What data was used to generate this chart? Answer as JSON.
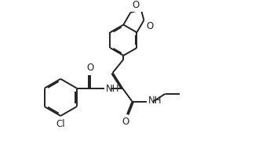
{
  "bg_color": "#ffffff",
  "line_color": "#222222",
  "line_width": 1.4,
  "font_size": 8.5,
  "figsize": [
    3.48,
    2.12
  ],
  "dpi": 100,
  "xlim": [
    0,
    10
  ],
  "ylim": [
    0,
    6
  ]
}
